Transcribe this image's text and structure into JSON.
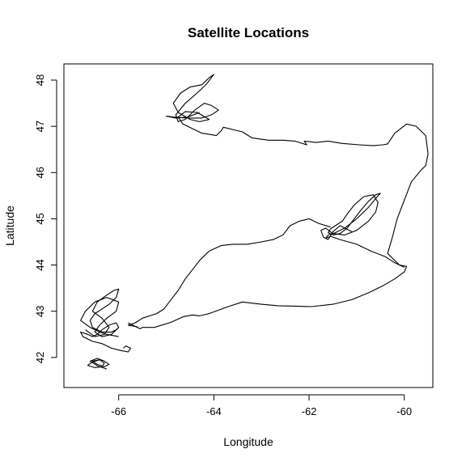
{
  "chart_data": {
    "type": "line",
    "title": "Satellite Locations",
    "xlabel": "Longitude",
    "ylabel": "Latitude",
    "xlim": [
      -67.15,
      -59.4
    ],
    "ylim": [
      41.35,
      48.35
    ],
    "xticks": [
      -66,
      -64,
      -62,
      -60
    ],
    "yticks": [
      42,
      43,
      44,
      45,
      46,
      47,
      48
    ],
    "grid": false,
    "line_color": "#000000",
    "series": [
      {
        "x": [
          -65.8,
          -65.55,
          -65.5,
          -65.25,
          -64.9,
          -64.65,
          -64.45,
          -64.3,
          -64.1,
          -63.7,
          -63.4,
          -63.0,
          -62.65,
          -62.3,
          -61.95,
          -61.5,
          -61.1,
          -60.75,
          -60.45,
          -60.2,
          -60.0,
          -59.95,
          -60.1,
          -60.35,
          -60.25,
          -60.15,
          -60.0,
          -59.85,
          -59.65,
          -59.55,
          -59.5,
          -59.55,
          -59.75,
          -59.95,
          -60.2,
          -60.35,
          -60.45,
          -60.65,
          -60.95,
          -61.3,
          -61.6,
          -61.85,
          -62.1,
          -62.05,
          -62.3,
          -62.55,
          -62.85,
          -63.2,
          -63.4,
          -63.8,
          -63.85,
          -63.95,
          -64.05,
          -64.25,
          -64.45,
          -64.65,
          -64.75,
          -64.6,
          -64.35,
          -64.1,
          -64.3,
          -64.5,
          -64.75,
          -64.85,
          -64.7,
          -64.5,
          -64.25,
          -64.1,
          -64.0,
          -64.15,
          -64.35,
          -64.6,
          -64.8,
          -64.75,
          -64.6,
          -64.4,
          -64.2,
          -64.05,
          -63.9,
          -64.05,
          -64.25,
          -64.55,
          -64.85,
          -65.0,
          -64.8,
          -64.55,
          -64.3
        ],
        "y": [
          42.75,
          42.62,
          42.65,
          42.65,
          42.76,
          42.88,
          42.92,
          42.9,
          42.95,
          43.1,
          43.2,
          43.15,
          43.12,
          43.11,
          43.1,
          43.15,
          43.25,
          43.4,
          43.55,
          43.7,
          43.85,
          43.97,
          44.0,
          44.25,
          44.6,
          45.0,
          45.4,
          45.8,
          46.05,
          46.15,
          46.4,
          46.8,
          47.0,
          47.05,
          46.85,
          46.62,
          46.6,
          46.58,
          46.6,
          46.63,
          46.68,
          46.65,
          46.68,
          46.6,
          46.68,
          46.7,
          46.7,
          46.75,
          46.88,
          46.98,
          46.9,
          46.8,
          46.82,
          46.85,
          46.95,
          47.05,
          47.2,
          47.32,
          47.3,
          47.15,
          47.1,
          47.15,
          47.3,
          47.5,
          47.72,
          47.85,
          47.9,
          48.05,
          48.12,
          47.92,
          47.72,
          47.5,
          47.25,
          47.1,
          47.15,
          47.35,
          47.5,
          47.45,
          47.35,
          47.25,
          47.18,
          47.18,
          47.2,
          47.22,
          47.18,
          47.2,
          47.3
        ]
      },
      {
        "x": [
          -61.1,
          -61.35,
          -61.5,
          -61.6,
          -61.7,
          -61.75,
          -61.65,
          -61.5,
          -61.25,
          -61.0,
          -60.75,
          -60.6,
          -60.55,
          -60.65,
          -60.85,
          -61.05,
          -61.2,
          -61.3,
          -61.45,
          -61.55,
          -61.6,
          -61.5,
          -61.35,
          -61.2,
          -61.05,
          -60.9,
          -60.75,
          -60.6,
          -60.5,
          -60.55,
          -60.75,
          -61.0,
          -61.25,
          -61.45,
          -61.6,
          -61.65,
          -61.55,
          -61.35,
          -61.0,
          -60.7,
          -60.4,
          -60.2,
          -60.0
        ],
        "y": [
          44.72,
          44.85,
          44.72,
          44.55,
          44.6,
          44.75,
          44.8,
          44.68,
          44.65,
          44.75,
          44.95,
          45.15,
          45.35,
          45.52,
          45.48,
          45.3,
          45.1,
          44.95,
          44.85,
          44.78,
          44.7,
          44.65,
          44.68,
          44.8,
          45.0,
          45.2,
          45.38,
          45.52,
          45.55,
          45.5,
          45.25,
          45.0,
          44.8,
          44.7,
          44.65,
          44.58,
          44.62,
          44.55,
          44.45,
          44.3,
          44.18,
          44.05,
          43.95
        ]
      },
      {
        "x": [
          -61.55,
          -61.8,
          -62.0,
          -62.2,
          -62.4,
          -62.55,
          -62.75,
          -63.0,
          -63.3,
          -63.6,
          -63.85,
          -64.1,
          -64.3,
          -64.45,
          -64.6,
          -64.75,
          -64.9,
          -65.05,
          -65.2,
          -65.35,
          -65.5,
          -65.65,
          -65.8,
          -65.7,
          -65.6
        ],
        "y": [
          44.82,
          44.9,
          45.0,
          44.95,
          44.85,
          44.65,
          44.55,
          44.5,
          44.45,
          44.45,
          44.42,
          44.3,
          44.1,
          43.9,
          43.7,
          43.45,
          43.25,
          43.05,
          42.95,
          42.9,
          42.85,
          42.75,
          42.7,
          42.68,
          42.66
        ]
      },
      {
        "x": [
          -65.9,
          -65.85,
          -65.75,
          -65.8,
          -65.95,
          -66.15,
          -66.35,
          -66.55,
          -66.75,
          -66.8,
          -66.65,
          -66.55,
          -66.45,
          -66.35,
          -66.2,
          -66.05,
          -66.0,
          -66.15,
          -66.35,
          -66.5,
          -66.4,
          -66.25,
          -66.05,
          -66.0,
          -66.25,
          -66.5,
          -66.7,
          -66.8,
          -66.6,
          -66.4,
          -66.25,
          -66.0
        ],
        "y": [
          42.2,
          42.25,
          42.2,
          42.12,
          42.15,
          42.2,
          42.3,
          42.35,
          42.45,
          42.55,
          42.5,
          42.45,
          42.5,
          42.6,
          42.7,
          42.75,
          42.65,
          42.5,
          42.45,
          42.55,
          42.7,
          42.85,
          43.0,
          43.2,
          43.3,
          43.2,
          43.0,
          42.8,
          42.65,
          42.55,
          42.5,
          42.45
        ]
      },
      {
        "x": [
          -66.7,
          -66.5,
          -66.3,
          -66.2,
          -66.35,
          -66.55,
          -66.45,
          -66.25,
          -66.1,
          -66.0,
          -66.05,
          -66.2,
          -66.35,
          -66.5,
          -66.6,
          -66.55,
          -66.35,
          -66.15,
          -66.05,
          -66.0
        ],
        "y": [
          42.6,
          42.45,
          42.5,
          42.65,
          42.85,
          43.0,
          43.2,
          43.35,
          43.45,
          43.48,
          43.3,
          43.15,
          43.05,
          42.95,
          42.8,
          42.65,
          42.55,
          42.55,
          42.6,
          42.65
        ]
      },
      {
        "x": [
          -66.4,
          -66.55,
          -66.65,
          -66.5,
          -66.35,
          -66.3,
          -66.4,
          -66.55,
          -66.45,
          -66.3,
          -66.2,
          -66.3,
          -66.45,
          -66.6,
          -66.45,
          -66.25
        ],
        "y": [
          41.95,
          41.9,
          41.83,
          41.78,
          41.8,
          41.88,
          41.95,
          41.92,
          41.85,
          41.8,
          41.85,
          41.92,
          41.98,
          41.92,
          41.82,
          41.75
        ]
      }
    ]
  }
}
